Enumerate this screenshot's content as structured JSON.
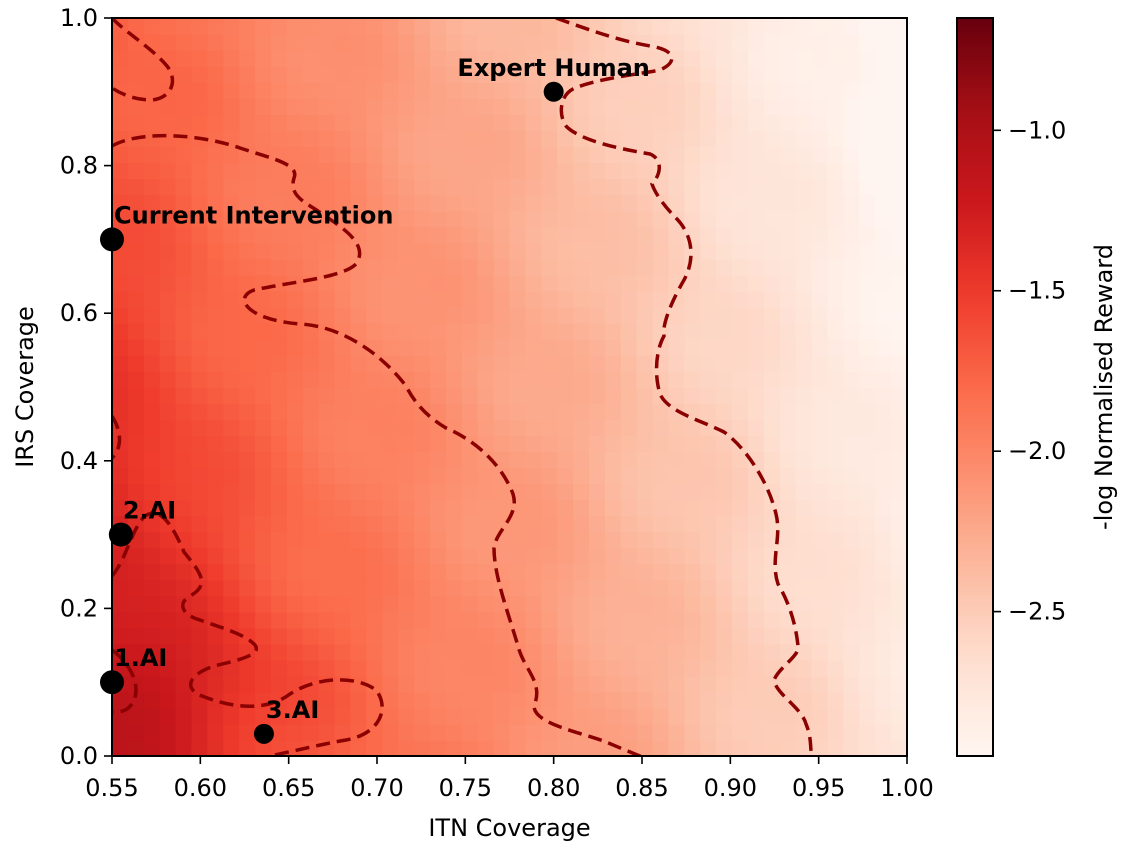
{
  "chart_data": {
    "type": "heatmap",
    "xlabel": "ITN Coverage",
    "ylabel": "IRS Coverage",
    "xlim": [
      0.55,
      1.0
    ],
    "ylim": [
      0.0,
      1.0
    ],
    "x_ticks": [
      "0.55",
      "0.60",
      "0.65",
      "0.70",
      "0.75",
      "0.80",
      "0.85",
      "0.90",
      "0.95",
      "1.00"
    ],
    "y_ticks": [
      "0.0",
      "0.2",
      "0.4",
      "0.6",
      "0.8",
      "1.0"
    ],
    "colormap": "Reds",
    "colorbar": {
      "label": "-log Normalised Reward",
      "range": [
        -2.95,
        -0.65
      ],
      "ticks": [
        "−1.0",
        "−1.5",
        "−2.0",
        "−2.5"
      ],
      "tick_values": [
        -1.0,
        -1.5,
        -2.0,
        -2.5
      ]
    },
    "contour_style": "dashed",
    "contour_color": "#8b0000",
    "points": [
      {
        "label": "Expert Human",
        "x": 0.8,
        "y": 0.9
      },
      {
        "label": "Current Intervention",
        "x": 0.55,
        "y": 0.7
      },
      {
        "label": "2.AI",
        "x": 0.555,
        "y": 0.3
      },
      {
        "label": "1.AI",
        "x": 0.55,
        "y": 0.1
      },
      {
        "label": "3.AI",
        "x": 0.636,
        "y": 0.03
      }
    ]
  }
}
